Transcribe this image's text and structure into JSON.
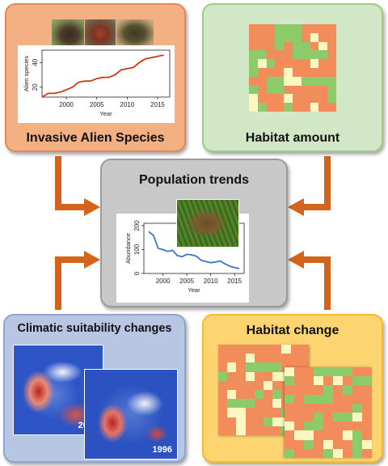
{
  "panels": {
    "invasive": {
      "title": "Invasive Alien Species",
      "fill": "#f3b083",
      "border": "#e68a52"
    },
    "habitat_amount": {
      "title": "Habitat amount",
      "fill": "#d2e7c5",
      "border": "#9fcb87"
    },
    "population": {
      "title": "Population trends",
      "fill": "#c8c8c8",
      "border": "#9b9b9b"
    },
    "climatic": {
      "title": "Climatic suitability changes",
      "fill": "#b7c7e3",
      "border": "#8ea6cf"
    },
    "habitat_change": {
      "title": "Habitat change",
      "fill": "#fcd571",
      "border": "#f5bb2e"
    }
  },
  "chart_data": [
    {
      "type": "line",
      "name": "invasive-alien-species-trend",
      "xlabel": "Year",
      "ylabel": "Alien species",
      "xlim": [
        1996,
        2017
      ],
      "ylim": [
        12,
        50
      ],
      "xticks": [
        "2000",
        "2005",
        "2010",
        "2015"
      ],
      "yticks": [
        "20",
        "40"
      ],
      "color": "#c83c10",
      "x": [
        1996,
        1997,
        1998,
        1999,
        2000,
        2001,
        2002,
        2003,
        2004,
        2005,
        2006,
        2007,
        2008,
        2009,
        2010,
        2011,
        2012,
        2013,
        2014,
        2015,
        2016
      ],
      "values": [
        12,
        15,
        15,
        16,
        18,
        20,
        24,
        25,
        25,
        27,
        28,
        28,
        30,
        34,
        35,
        36,
        40,
        43,
        44,
        45,
        46
      ]
    },
    {
      "type": "line",
      "name": "population-abundance-trend",
      "xlabel": "Year",
      "ylabel": "Abundance",
      "xlim": [
        1996,
        2017
      ],
      "ylim": [
        0,
        210
      ],
      "xticks": [
        "2000",
        "2005",
        "2010",
        "2015"
      ],
      "yticks": [
        "0",
        "100",
        "200"
      ],
      "color": "#3f73c8",
      "x": [
        1997,
        1998,
        1999,
        2000,
        2001,
        2002,
        2003,
        2004,
        2005,
        2006,
        2007,
        2008,
        2009,
        2010,
        2011,
        2012,
        2013,
        2014,
        2015,
        2016
      ],
      "values": [
        175,
        160,
        105,
        100,
        92,
        97,
        75,
        70,
        80,
        78,
        72,
        55,
        50,
        45,
        48,
        52,
        40,
        30,
        25,
        20
      ]
    }
  ],
  "grids": {
    "colors": {
      "o": "#f28c5b",
      "g": "#8dcb6a",
      "y": "#fbf7c1"
    },
    "habitat_amount": [
      "ooogggoooo",
      "ooogggoyoo",
      "ooogoggoyo",
      "ggoooggggo",
      "gygooooyoo",
      "goooyooooo",
      "ooggyygggg",
      "goggooooog",
      "yoooyoooog",
      "ygoogooyoo"
    ],
    "habitat_change_back": [
      "oooooooyoo",
      "oooyoooooo",
      "oyoggggooo",
      "gooyooyyoo",
      "oooooyoogg",
      "oyoogogooo",
      "ogggooyooo",
      "oyyoooogoo",
      "ooyoogyyoo",
      "ooyoooogoo"
    ],
    "habitat_change_front": [
      "yooggggoo",
      "gooyoyogg",
      "oooogogoo",
      "gogggoooo",
      "ooooooogo",
      "ooogoggyo",
      "yoggooooo",
      "oyyoooygo",
      "oogoyoogy",
      "gooogyogo"
    ]
  },
  "maps": {
    "back_label": "2015",
    "front_label": "1996"
  },
  "arrow_color": "#d4641c",
  "photos": {
    "invasive": [
      "mink-photo",
      "crayfish-photo",
      "turtle-photo"
    ],
    "population": "toad-photo"
  }
}
